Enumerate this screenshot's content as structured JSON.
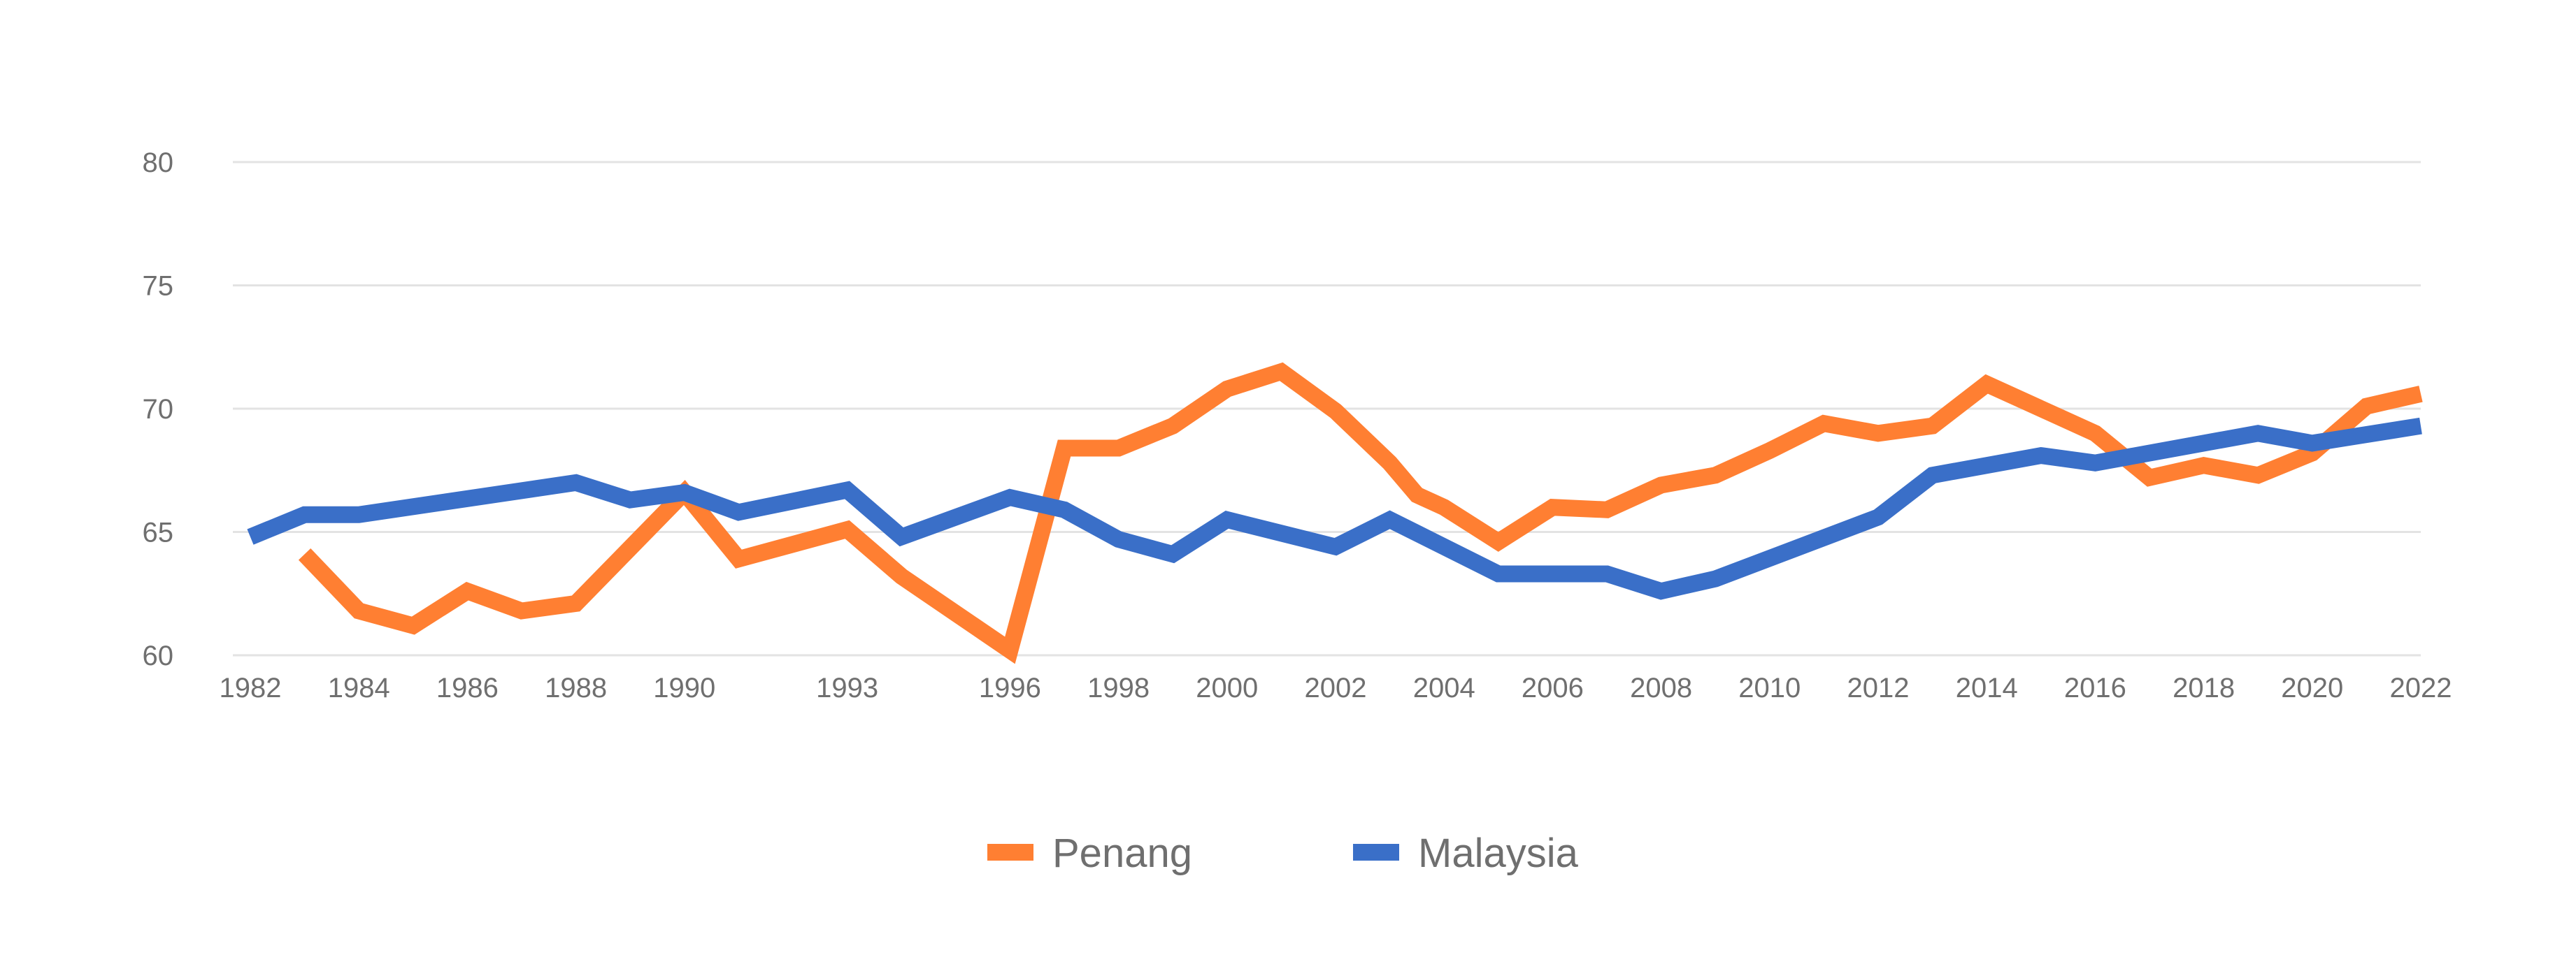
{
  "chart_data": {
    "type": "line",
    "title": "",
    "xlabel": "",
    "ylabel": "",
    "ylim": [
      60,
      80
    ],
    "yticks": [
      "60",
      "65",
      "70",
      "75",
      "80"
    ],
    "xticks": [
      "1982",
      "1984",
      "1986",
      "1988",
      "1990",
      "1993",
      "1996",
      "1998",
      "2000",
      "2002",
      "2004",
      "2006",
      "2008",
      "2010",
      "2012",
      "2014",
      "2016",
      "2018",
      "2020",
      "2022"
    ],
    "grid": true,
    "legend_position": "bottom",
    "series": [
      {
        "name": "Penang",
        "color": "#ff7f32",
        "points": [
          [
            "1983",
            64.1
          ],
          [
            "1984",
            61.8
          ],
          [
            "1985",
            61.2
          ],
          [
            "1986",
            62.6
          ],
          [
            "1987",
            61.8
          ],
          [
            "1988",
            62.1
          ],
          [
            "1990",
            66.6
          ],
          [
            "1991",
            63.9
          ],
          [
            "1993",
            65.1
          ],
          [
            "1994",
            63.2
          ],
          [
            "1996",
            60.2
          ],
          [
            "1997",
            68.4
          ],
          [
            "1998",
            68.4
          ],
          [
            "1999",
            69.3
          ],
          [
            "2000",
            70.8
          ],
          [
            "2001",
            71.5
          ],
          [
            "2002",
            69.9
          ],
          [
            "2003",
            67.8
          ],
          [
            "2003.5",
            66.5
          ],
          [
            "2004",
            66.0
          ],
          [
            "2005",
            64.6
          ],
          [
            "2006",
            66.0
          ],
          [
            "2007",
            65.9
          ],
          [
            "2008",
            66.9
          ],
          [
            "2009",
            67.3
          ],
          [
            "2010",
            68.3
          ],
          [
            "2011",
            69.4
          ],
          [
            "2012",
            69.0
          ],
          [
            "2013",
            69.3
          ],
          [
            "2014",
            71.0
          ],
          [
            "2015",
            70.0
          ],
          [
            "2016",
            69.0
          ],
          [
            "2017",
            67.2
          ],
          [
            "2018",
            67.7
          ],
          [
            "2019",
            67.3
          ],
          [
            "2020",
            68.2
          ],
          [
            "2021",
            70.1
          ],
          [
            "2022",
            70.6
          ]
        ]
      },
      {
        "name": "Malaysia",
        "color": "#3a6fc8",
        "points": [
          [
            "1982",
            64.8
          ],
          [
            "1983",
            65.7
          ],
          [
            "1984",
            65.7
          ],
          [
            "1988",
            67.0
          ],
          [
            "1989",
            66.3
          ],
          [
            "1990",
            66.6
          ],
          [
            "1991",
            65.8
          ],
          [
            "1993",
            66.7
          ],
          [
            "1994",
            64.8
          ],
          [
            "1996",
            66.4
          ],
          [
            "1997",
            65.9
          ],
          [
            "1998",
            64.7
          ],
          [
            "1999",
            64.1
          ],
          [
            "2000",
            65.5
          ],
          [
            "2002",
            64.4
          ],
          [
            "2003",
            65.5
          ],
          [
            "2005",
            63.3
          ],
          [
            "2007",
            63.3
          ],
          [
            "2008",
            62.6
          ],
          [
            "2009",
            63.1
          ],
          [
            "2012",
            65.6
          ],
          [
            "2013",
            67.3
          ],
          [
            "2015",
            68.1
          ],
          [
            "2016",
            67.8
          ],
          [
            "2019",
            69.0
          ],
          [
            "2020",
            68.6
          ],
          [
            "2022",
            69.3
          ]
        ]
      }
    ]
  }
}
